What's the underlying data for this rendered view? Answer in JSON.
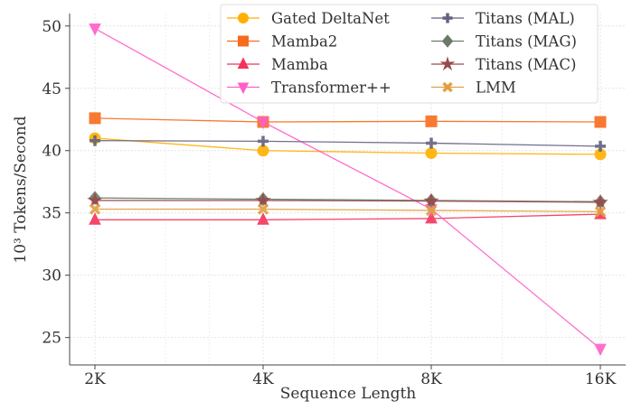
{
  "chart_data": {
    "type": "line",
    "title": "",
    "xlabel": "Sequence Length",
    "ylabel": "10³ Tokens/Second",
    "x_scale": "log2",
    "categories": [
      "2K",
      "4K",
      "8K",
      "16K"
    ],
    "ylim": [
      22.8,
      51
    ],
    "yticks": [
      25,
      30,
      35,
      40,
      45,
      50
    ],
    "grid": true,
    "legend_position": "top-center",
    "series": [
      {
        "name": "Gated DeltaNet",
        "color": "#ffb000",
        "marker": "circle",
        "values": [
          41.0,
          40.0,
          39.8,
          39.7
        ]
      },
      {
        "name": "Mamba2",
        "color": "#f76b1c",
        "marker": "square",
        "values": [
          42.6,
          42.3,
          42.35,
          42.3
        ]
      },
      {
        "name": "Mamba",
        "color": "#f5325b",
        "marker": "triangle-up",
        "values": [
          34.45,
          34.45,
          34.55,
          34.9
        ]
      },
      {
        "name": "Transformer++",
        "color": "#ff5fc8",
        "marker": "triangle-down",
        "values": [
          49.8,
          42.3,
          35.3,
          24.1
        ]
      },
      {
        "name": "Titans (MAL)",
        "color": "#626180",
        "marker": "plus",
        "values": [
          40.8,
          40.75,
          40.6,
          40.35
        ]
      },
      {
        "name": "Titans (MAG)",
        "color": "#6b7a66",
        "marker": "diamond",
        "values": [
          36.2,
          36.1,
          36.0,
          35.9
        ]
      },
      {
        "name": "Titans (MAC)",
        "color": "#9a4a4a",
        "marker": "star",
        "values": [
          36.0,
          36.0,
          35.95,
          35.85
        ]
      },
      {
        "name": "LMM",
        "color": "#e0a040",
        "marker": "x",
        "values": [
          35.3,
          35.3,
          35.2,
          35.1
        ]
      }
    ]
  }
}
